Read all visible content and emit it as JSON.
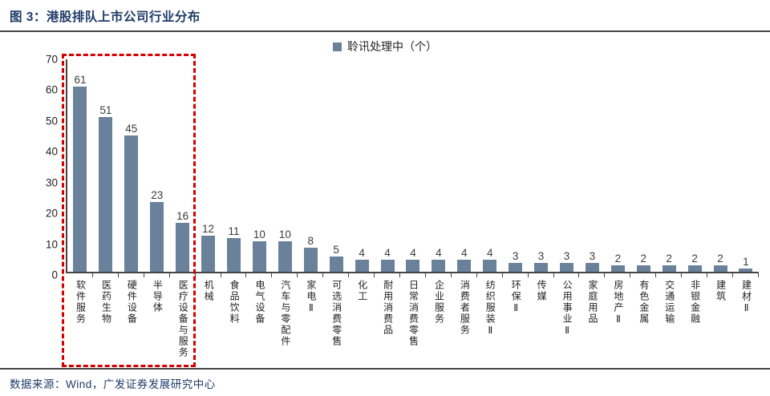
{
  "figure": {
    "title": "图 3：港股排队上市公司行业分布",
    "source": "数据来源：Wind，广发证券发展研究中心"
  },
  "legend": {
    "label": "聆讯处理中（个）"
  },
  "colors": {
    "bar": "#69819B",
    "highlight_red": "#D40000",
    "title_navy": "#1E3A67",
    "axis_line": "#454545"
  },
  "chart_data": {
    "type": "bar",
    "title": "港股排队上市公司行业分布",
    "legend_entries": [
      "聆讯处理中（个）"
    ],
    "legend_position": "top-center",
    "grid": false,
    "ylabel": "",
    "xlabel": "",
    "ylim": [
      0,
      70
    ],
    "yticks": [
      0,
      10,
      20,
      30,
      40,
      50,
      60,
      70
    ],
    "categories": [
      "软件服务",
      "医药生物",
      "硬件设备",
      "半导体",
      "医疗设备与服务",
      "机械",
      "食品饮料",
      "电气设备",
      "汽车与零配件",
      "家电Ⅱ",
      "可选消费零售",
      "化工",
      "耐用消费品",
      "日常消费零售",
      "企业服务",
      "消费者服务",
      "纺织服装Ⅱ",
      "环保Ⅱ",
      "传媒",
      "公用事业Ⅱ",
      "家庭用品",
      "房地产Ⅱ",
      "有色金属",
      "交通运输",
      "非银金融",
      "建筑",
      "建材Ⅱ"
    ],
    "values": [
      61,
      51,
      45,
      23,
      16,
      12,
      11,
      10,
      10,
      8,
      5,
      4,
      4,
      4,
      4,
      4,
      4,
      3,
      3,
      3,
      3,
      2,
      2,
      2,
      2,
      2,
      1
    ],
    "annotation": "红色虚线框圈出前5个行业（软件服务至医疗设备与服务）"
  }
}
